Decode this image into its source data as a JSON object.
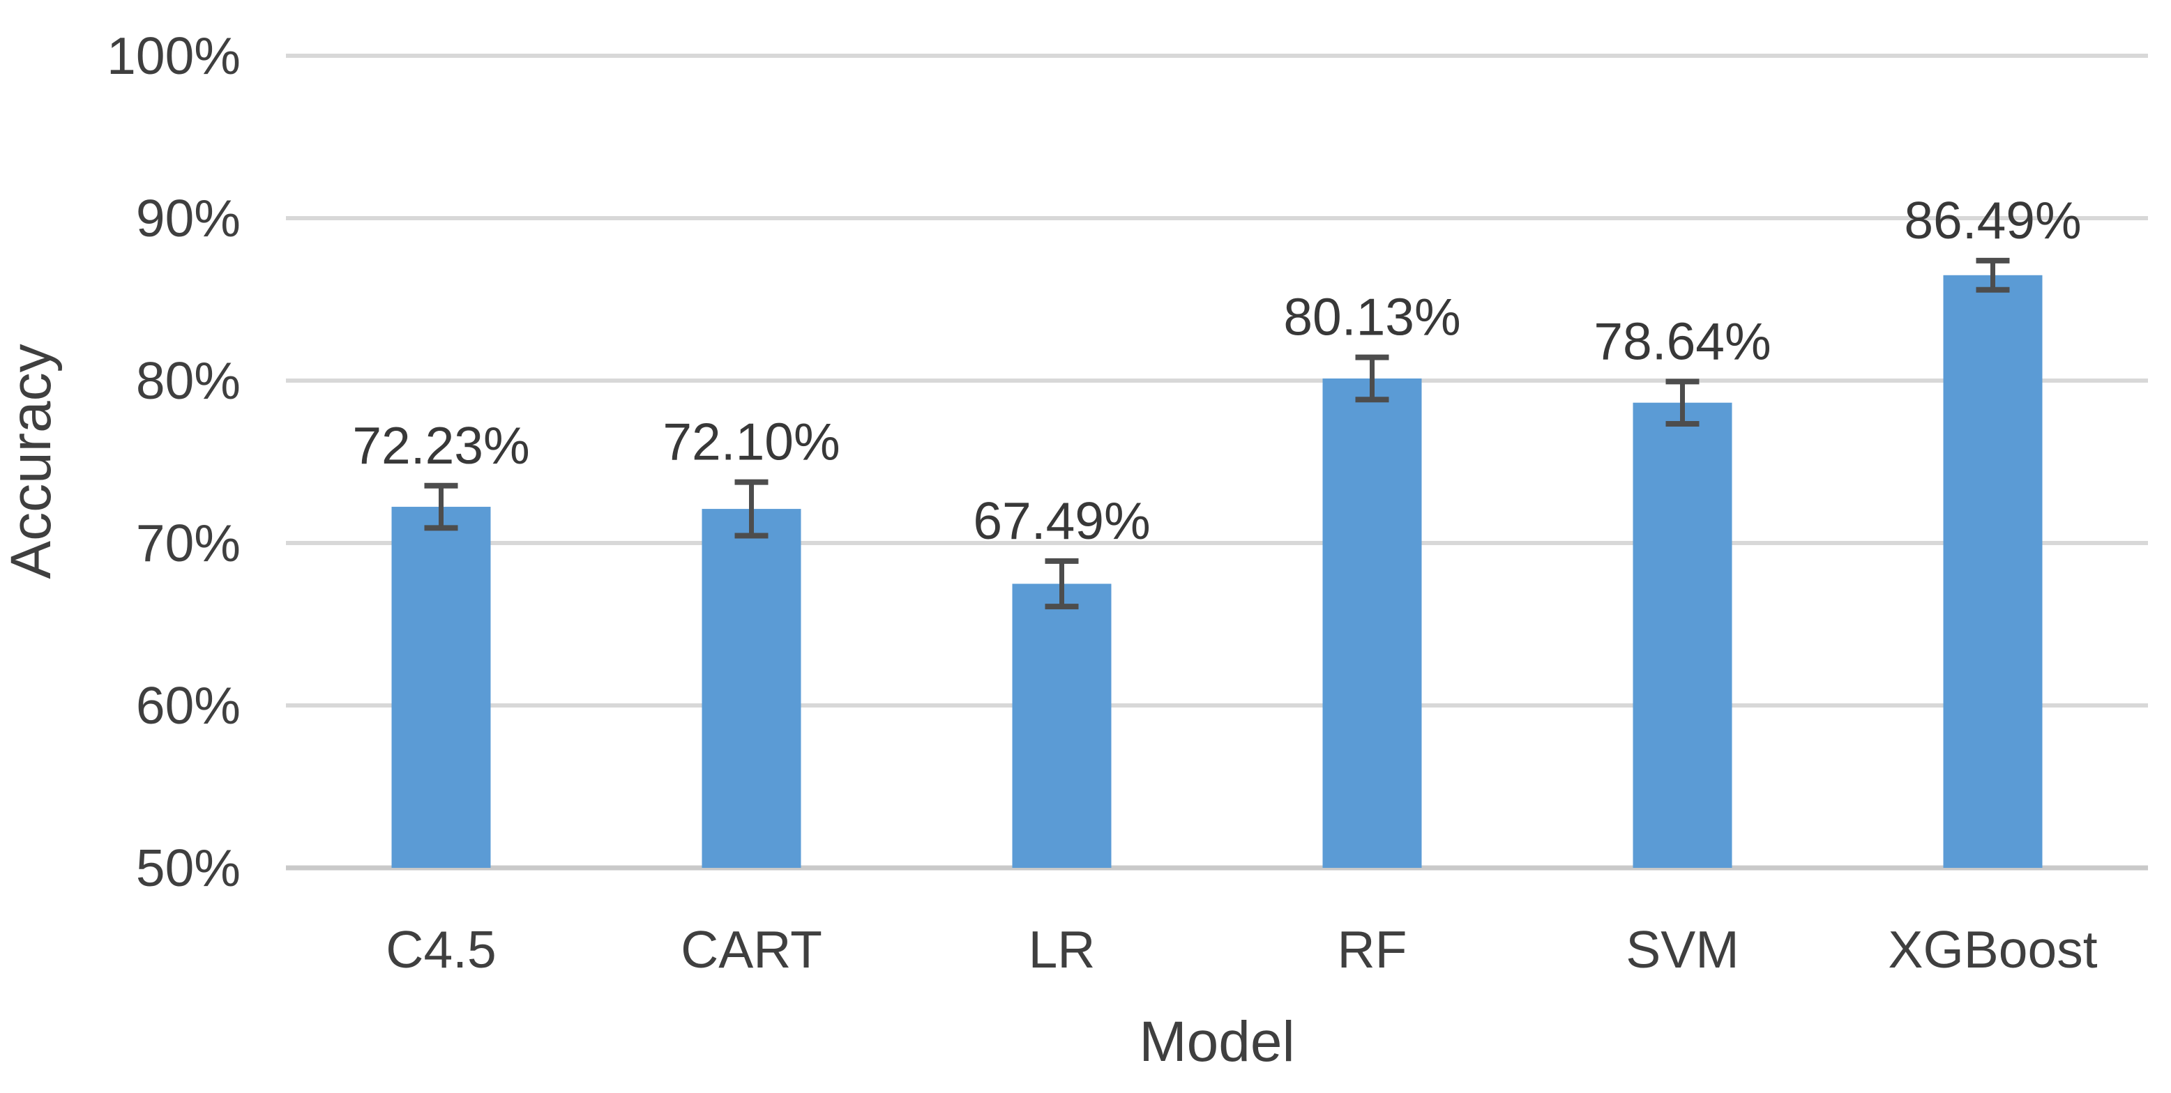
{
  "chart_data": {
    "type": "bar",
    "title": "",
    "xlabel": "Model",
    "ylabel": "Accuracy",
    "categories": [
      "C4.5",
      "CART",
      "LR",
      "RF",
      "SVM",
      "XGBoost"
    ],
    "values": [
      72.23,
      72.1,
      67.49,
      80.13,
      78.64,
      86.49
    ],
    "data_labels": [
      "72.23%",
      "72.10%",
      "67.49%",
      "80.13%",
      "78.64%",
      "86.49%"
    ],
    "error_bars": [
      1.3,
      1.65,
      1.4,
      1.3,
      1.3,
      0.9
    ],
    "ylim": [
      50,
      100
    ],
    "ytick_step": 10,
    "yticks": [
      50,
      60,
      70,
      80,
      90,
      100
    ],
    "ytick_labels": [
      "50%",
      "60%",
      "70%",
      "80%",
      "90%",
      "100%"
    ],
    "grid": "horizontal-only",
    "legend_position": "none",
    "colors": {
      "bar": "#5B9BD5",
      "error_bar": "#4D4D4D",
      "grid_line": "#D8D8D8",
      "baseline": "#C9C9C9",
      "axis_text": "#3F3F3F",
      "background": "#FFFFFF"
    }
  }
}
